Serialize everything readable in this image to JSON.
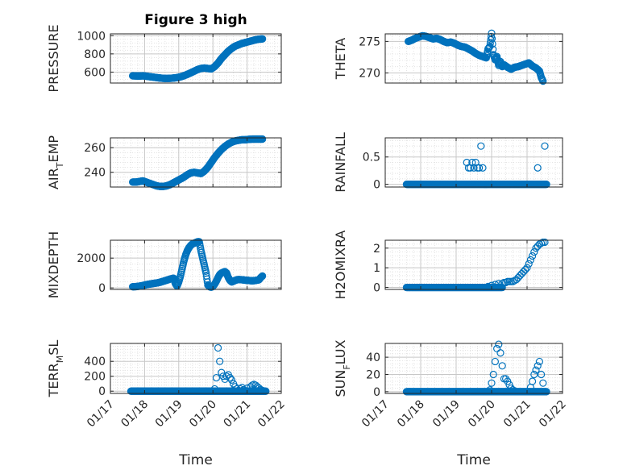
{
  "figure": {
    "title": "Figure 3 high",
    "xlabel": "Time",
    "xticks": [
      "01/17",
      "01/18",
      "01/19",
      "01/20",
      "01/21",
      "01/22"
    ]
  },
  "colors": {
    "marker": "#0072BD",
    "axis": "#262626",
    "grid": "#c8c8c8",
    "minor_grid": "#dedede"
  },
  "chart_data": [
    {
      "type": "scatter",
      "id": "pressure",
      "ylabel": "PRESSURE",
      "ylim": [
        480,
        1020
      ],
      "yticks": [
        600,
        800,
        1000
      ],
      "grid": true,
      "x": [
        17.65,
        17.75,
        17.85,
        17.95,
        18.05,
        18.15,
        18.25,
        18.35,
        18.45,
        18.55,
        18.65,
        18.75,
        18.85,
        18.95,
        19.05,
        19.15,
        19.25,
        19.35,
        19.45,
        19.55,
        19.65,
        19.75,
        19.85,
        19.95,
        20.05,
        20.15,
        20.25,
        20.35,
        20.45,
        20.55,
        20.65,
        20.75,
        20.85,
        20.95,
        21.05,
        21.15,
        21.25,
        21.35,
        21.45
      ],
      "y": [
        560,
        558,
        557,
        560,
        555,
        550,
        545,
        540,
        535,
        532,
        530,
        532,
        535,
        540,
        548,
        560,
        575,
        592,
        610,
        628,
        640,
        645,
        640,
        635,
        660,
        700,
        750,
        790,
        830,
        860,
        885,
        900,
        915,
        925,
        935,
        945,
        955,
        962,
        965
      ]
    },
    {
      "type": "scatter",
      "id": "theta",
      "ylabel": "THETA",
      "ylim": [
        268.4,
        276.2
      ],
      "yticks": [
        270,
        275
      ],
      "grid": true,
      "x": [
        17.65,
        17.75,
        17.85,
        17.95,
        18.05,
        18.15,
        18.25,
        18.35,
        18.45,
        18.55,
        18.65,
        18.75,
        18.85,
        18.95,
        19.05,
        19.15,
        19.25,
        19.35,
        19.45,
        19.55,
        19.65,
        19.75,
        19.85,
        19.9,
        19.95,
        20.0,
        20.05,
        20.1,
        20.15,
        20.2,
        20.25,
        20.3,
        20.35,
        20.45,
        20.55,
        20.65,
        20.75,
        20.85,
        20.95,
        21.05,
        21.15,
        21.25,
        21.35,
        21.4,
        21.45
      ],
      "y": [
        275.0,
        275.2,
        275.5,
        275.7,
        275.9,
        275.8,
        275.6,
        275.4,
        275.5,
        275.3,
        275.0,
        274.8,
        274.9,
        274.7,
        274.4,
        274.2,
        274.1,
        273.8,
        273.5,
        273.1,
        272.8,
        272.6,
        272.4,
        273.8,
        274.2,
        276.3,
        272.9,
        272.1,
        272.6,
        271.2,
        271.8,
        271.0,
        271.3,
        270.9,
        270.6,
        270.9,
        271.0,
        271.2,
        271.4,
        271.6,
        271.1,
        270.8,
        270.3,
        269.3,
        268.7
      ]
    },
    {
      "type": "scatter",
      "id": "air_temp",
      "ylabel": "AIR",
      "ylabel_sub": "T",
      "ylabel_rest": "EMP",
      "ylim": [
        228,
        268
      ],
      "yticks": [
        240,
        260
      ],
      "grid": true,
      "x": [
        17.65,
        17.75,
        17.85,
        17.95,
        18.05,
        18.15,
        18.25,
        18.35,
        18.45,
        18.55,
        18.65,
        18.75,
        18.85,
        18.95,
        19.05,
        19.15,
        19.25,
        19.35,
        19.45,
        19.55,
        19.65,
        19.75,
        19.85,
        19.95,
        20.05,
        20.15,
        20.25,
        20.35,
        20.45,
        20.55,
        20.65,
        20.75,
        20.85,
        20.95,
        21.05,
        21.15,
        21.25,
        21.35,
        21.45
      ],
      "y": [
        232,
        232,
        232.5,
        233,
        232,
        231,
        230,
        229,
        228.5,
        228.5,
        229,
        230,
        231.5,
        233,
        234.5,
        236,
        238,
        239.5,
        240,
        239.5,
        239,
        241,
        244,
        248,
        252,
        255.5,
        258.5,
        261,
        263,
        264.5,
        265.5,
        266,
        266.5,
        266.5,
        266.8,
        267,
        267,
        267,
        267
      ]
    },
    {
      "type": "scatter",
      "id": "rainfall",
      "ylabel": "RAINFALL",
      "ylim": [
        -0.05,
        0.85
      ],
      "yticks": [
        0,
        0.5
      ],
      "grid": true,
      "zero_run": [
        17.6,
        21.55
      ],
      "x": [
        19.3,
        19.35,
        19.4,
        19.45,
        19.5,
        19.55,
        19.6,
        19.65,
        19.7,
        19.75,
        19.8,
        19.85,
        21.3,
        21.5
      ],
      "y": [
        0.4,
        0.3,
        0.3,
        0.4,
        0.3,
        0.4,
        0.3,
        0.3,
        0.7,
        0.3,
        0.0,
        0.0,
        0.3,
        0.7
      ]
    },
    {
      "type": "scatter",
      "id": "mixdepth",
      "ylabel": "MIXDEPTH",
      "ylim": [
        -100,
        3200
      ],
      "yticks": [
        0,
        2000
      ],
      "grid": true,
      "x": [
        17.65,
        17.75,
        17.85,
        17.95,
        18.05,
        18.15,
        18.25,
        18.35,
        18.45,
        18.55,
        18.65,
        18.75,
        18.85,
        18.9,
        18.95,
        19.0,
        19.05,
        19.1,
        19.15,
        19.2,
        19.25,
        19.3,
        19.35,
        19.4,
        19.45,
        19.5,
        19.55,
        19.6,
        19.65,
        19.7,
        19.75,
        19.8,
        19.85,
        19.9,
        19.95,
        20.0,
        20.05,
        20.1,
        20.15,
        20.2,
        20.25,
        20.3,
        20.35,
        20.4,
        20.45,
        20.5,
        20.55,
        20.6,
        20.65,
        20.7,
        20.75,
        20.85,
        20.95,
        21.05,
        21.15,
        21.25,
        21.35,
        21.4,
        21.45
      ],
      "y": [
        80,
        90,
        120,
        160,
        220,
        260,
        300,
        330,
        380,
        450,
        520,
        600,
        650,
        300,
        120,
        400,
        800,
        1300,
        1800,
        2200,
        2500,
        2700,
        2850,
        2950,
        3000,
        3050,
        3100,
        3100,
        2500,
        2000,
        1500,
        1000,
        200,
        80,
        50,
        100,
        250,
        450,
        700,
        900,
        1000,
        1050,
        1100,
        1000,
        700,
        500,
        400,
        450,
        500,
        550,
        560,
        550,
        520,
        500,
        480,
        500,
        550,
        700,
        800
      ]
    },
    {
      "type": "scatter",
      "id": "h2omixra",
      "ylabel": "H2OMIXRA",
      "ylim": [
        -0.1,
        2.4
      ],
      "yticks": [
        0,
        1,
        2
      ],
      "grid": true,
      "zero_run": [
        17.6,
        20.3
      ],
      "x": [
        19.9,
        20.0,
        20.1,
        20.2,
        20.3,
        20.35,
        20.4,
        20.45,
        20.5,
        20.55,
        20.6,
        20.65,
        20.7,
        20.75,
        20.8,
        20.85,
        20.9,
        20.95,
        21.0,
        21.05,
        21.1,
        21.15,
        21.2,
        21.25,
        21.3,
        21.35,
        21.4,
        21.45,
        21.5
      ],
      "y": [
        0.05,
        0.1,
        0.15,
        0.2,
        0.2,
        0.25,
        0.25,
        0.3,
        0.3,
        0.3,
        0.3,
        0.35,
        0.4,
        0.5,
        0.6,
        0.7,
        0.8,
        0.9,
        1.0,
        1.2,
        1.4,
        1.6,
        1.8,
        2.0,
        2.1,
        2.2,
        2.25,
        2.3,
        2.3
      ]
    },
    {
      "type": "scatter",
      "id": "terr_msl",
      "ylabel": "TERR",
      "ylabel_sub": "M",
      "ylabel_rest": "SL",
      "ylim": [
        -30,
        640
      ],
      "yticks": [
        0,
        200,
        400
      ],
      "grid": true,
      "zero_run": [
        17.6,
        21.55
      ],
      "x": [
        20.05,
        20.1,
        20.15,
        20.2,
        20.25,
        20.3,
        20.35,
        20.4,
        20.45,
        20.5,
        20.55,
        20.6,
        20.65,
        20.7,
        20.75,
        20.8,
        20.85,
        20.9,
        21.0,
        21.1,
        21.15,
        21.2,
        21.25,
        21.3,
        21.35,
        21.4,
        21.45
      ],
      "y": [
        30,
        180,
        580,
        400,
        250,
        200,
        160,
        200,
        220,
        180,
        150,
        100,
        60,
        30,
        10,
        30,
        50,
        20,
        40,
        60,
        80,
        90,
        80,
        60,
        40,
        20,
        10
      ]
    },
    {
      "type": "scatter",
      "id": "sun_flux",
      "ylabel": "SUN",
      "ylabel_sub": "F",
      "ylabel_rest": "LUX",
      "ylim": [
        -2,
        56
      ],
      "yticks": [
        0,
        20,
        40
      ],
      "grid": true,
      "zero_run": [
        17.6,
        21.55
      ],
      "x": [
        19.95,
        20.0,
        20.05,
        20.1,
        20.15,
        20.2,
        20.25,
        20.3,
        20.35,
        20.4,
        20.45,
        20.5,
        20.55,
        20.6,
        20.65,
        20.7,
        21.1,
        21.15,
        21.2,
        21.25,
        21.3,
        21.35,
        21.4,
        21.45
      ],
      "y": [
        2,
        10,
        20,
        35,
        50,
        55,
        45,
        30,
        15,
        15,
        12,
        8,
        4,
        2,
        1,
        0,
        5,
        12,
        20,
        25,
        30,
        35,
        20,
        10
      ]
    }
  ]
}
